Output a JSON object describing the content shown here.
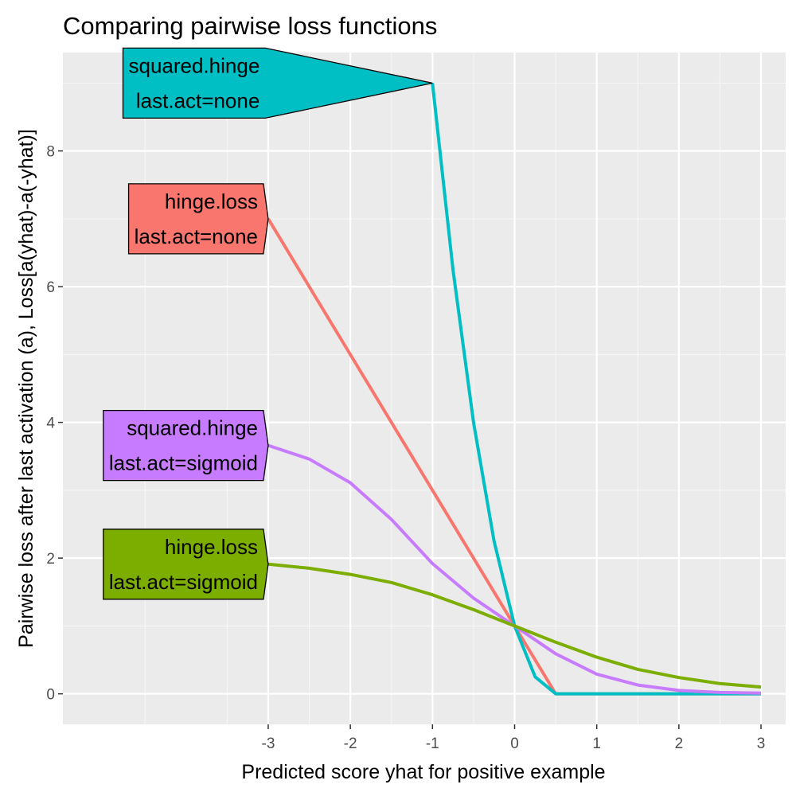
{
  "chart_data": {
    "type": "line",
    "title": "Comparing pairwise loss functions",
    "xlabel": "Predicted score yhat for positive example",
    "ylabel": "Pairwise loss after last activation (a), Loss[a(yhat)-a(-yhat)]",
    "xlim": [
      -5.5,
      3.3
    ],
    "ylim": [
      -0.45,
      9.45
    ],
    "x_ticks": [
      {
        "value": -3,
        "label": "-3"
      },
      {
        "value": -2,
        "label": "-2"
      },
      {
        "value": -1,
        "label": "-1"
      },
      {
        "value": 0,
        "label": "0"
      },
      {
        "value": 1,
        "label": "1"
      },
      {
        "value": 2,
        "label": "2"
      },
      {
        "value": 3,
        "label": "3"
      }
    ],
    "y_ticks": [
      {
        "value": 0,
        "label": "0"
      },
      {
        "value": 2,
        "label": "2"
      },
      {
        "value": 4,
        "label": "4"
      },
      {
        "value": 6,
        "label": "6"
      },
      {
        "value": 8,
        "label": "8"
      }
    ],
    "x_minor_breaks": [
      -4.5,
      -3.5,
      -2.5,
      -1.5,
      -0.5,
      0.5,
      1.5,
      2.5
    ],
    "y_minor_breaks": [
      1,
      3,
      5,
      7,
      9
    ],
    "grid": true,
    "legend": "none",
    "series": [
      {
        "color": "#F8766D",
        "label_lines": [
          "hinge.loss",
          "last.act=none"
        ],
        "label_x": -3.0,
        "label_y": 7.0,
        "points": [
          [
            -3,
            7.0
          ],
          [
            -2.5,
            6.0
          ],
          [
            -2,
            5.0
          ],
          [
            -1.5,
            4.0
          ],
          [
            -1,
            3.0
          ],
          [
            -0.5,
            2.0
          ],
          [
            0,
            1.0
          ],
          [
            0.25,
            0.5
          ],
          [
            0.5,
            0.0
          ],
          [
            1,
            0.0
          ],
          [
            1.5,
            0.0
          ],
          [
            2,
            0.0
          ],
          [
            2.5,
            0.0
          ],
          [
            3,
            0.0
          ]
        ]
      },
      {
        "color": "#00BFC4",
        "label_lines": [
          "squared.hinge",
          "last.act=none"
        ],
        "label_x": -1.0,
        "label_y": 9.0,
        "points": [
          [
            -1,
            9.0
          ],
          [
            -0.75,
            6.25
          ],
          [
            -0.5,
            4.0
          ],
          [
            -0.25,
            2.25
          ],
          [
            0,
            1.0
          ],
          [
            0.25,
            0.25
          ],
          [
            0.5,
            0.0
          ],
          [
            1,
            0.0
          ],
          [
            1.5,
            0.0
          ],
          [
            2,
            0.0
          ],
          [
            2.5,
            0.0
          ],
          [
            3,
            0.0
          ]
        ]
      },
      {
        "color": "#C77CFF",
        "label_lines": [
          "squared.hinge",
          "last.act=sigmoid"
        ],
        "label_x": -3.0,
        "label_y": 3.66,
        "points": [
          [
            -3,
            3.66
          ],
          [
            -2.5,
            3.46
          ],
          [
            -2,
            3.11
          ],
          [
            -1.5,
            2.57
          ],
          [
            -1,
            1.92
          ],
          [
            -0.5,
            1.41
          ],
          [
            0,
            1.0
          ],
          [
            0.5,
            0.59
          ],
          [
            1,
            0.29
          ],
          [
            1.5,
            0.13
          ],
          [
            2,
            0.05
          ],
          [
            2.5,
            0.02
          ],
          [
            3,
            0.01
          ]
        ]
      },
      {
        "color": "#7CAE00",
        "label_lines": [
          "hinge.loss",
          "last.act=sigmoid"
        ],
        "label_x": -3.0,
        "label_y": 1.91,
        "points": [
          [
            -3,
            1.91
          ],
          [
            -2.5,
            1.85
          ],
          [
            -2,
            1.76
          ],
          [
            -1.5,
            1.64
          ],
          [
            -1,
            1.46
          ],
          [
            -0.5,
            1.24
          ],
          [
            0,
            1.0
          ],
          [
            0.5,
            0.76
          ],
          [
            1,
            0.54
          ],
          [
            1.5,
            0.36
          ],
          [
            2,
            0.24
          ],
          [
            2.5,
            0.15
          ],
          [
            3,
            0.1
          ]
        ]
      }
    ]
  }
}
